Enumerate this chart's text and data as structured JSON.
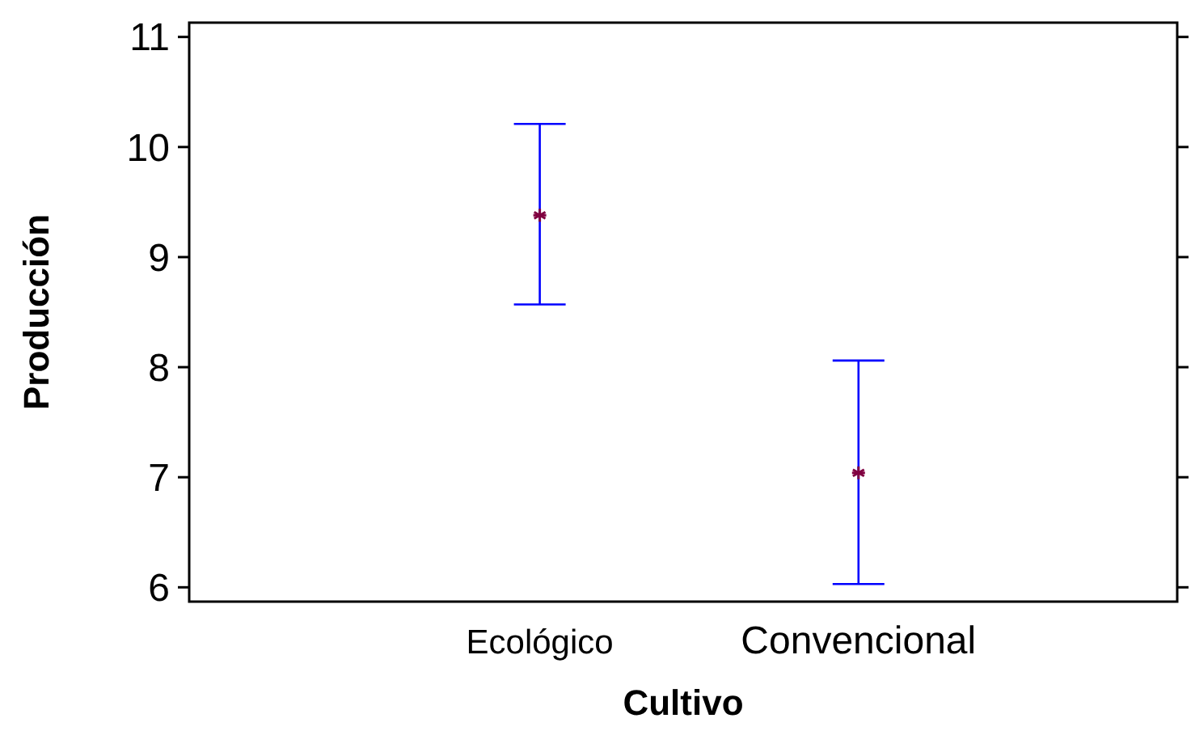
{
  "chart_data": {
    "type": "scatter",
    "xlabel": "Cultivo",
    "ylabel": "Producción",
    "categories": [
      "Ecológico",
      "Convencional"
    ],
    "series": [
      {
        "color": "#800040",
        "values": [
          9.38,
          7.04
        ],
        "errors": [
          [
            8.57,
            10.21
          ],
          [
            6.03,
            8.06
          ]
        ]
      }
    ],
    "ylim": [
      5.87,
      11.13
    ],
    "yticks": [
      6,
      7,
      8,
      9,
      10,
      11
    ],
    "marker": "cross",
    "grid": false
  }
}
